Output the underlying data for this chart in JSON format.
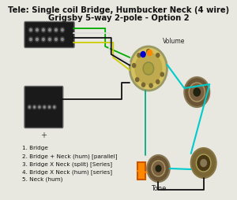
{
  "title_line1": "Tele: Single coil Bridge, Humbucker Neck (4 wire)",
  "title_line2": "Grigsby 5-way 2-pole - Option 2",
  "title_fontsize": 7.2,
  "bg_color": "#e8e8e0",
  "legend_items": [
    "1. Bridge",
    "2. Bridge + Neck (hum) [parallel]",
    "3. Bridge X Neck (split) [Series]",
    "4. Bridge X Neck (hum) [series]",
    "5. Neck (hum)"
  ],
  "volume_label": "Volume",
  "tone_label": "Tone",
  "wire_green": "#00aa00",
  "wire_yellow": "#cccc00",
  "wire_cyan": "#00cccc",
  "wire_white": "#dddddd",
  "wire_black": "#111111",
  "wire_orange": "#ff8800",
  "wire_blue": "#0000cc",
  "wire_teal": "#00aa88"
}
